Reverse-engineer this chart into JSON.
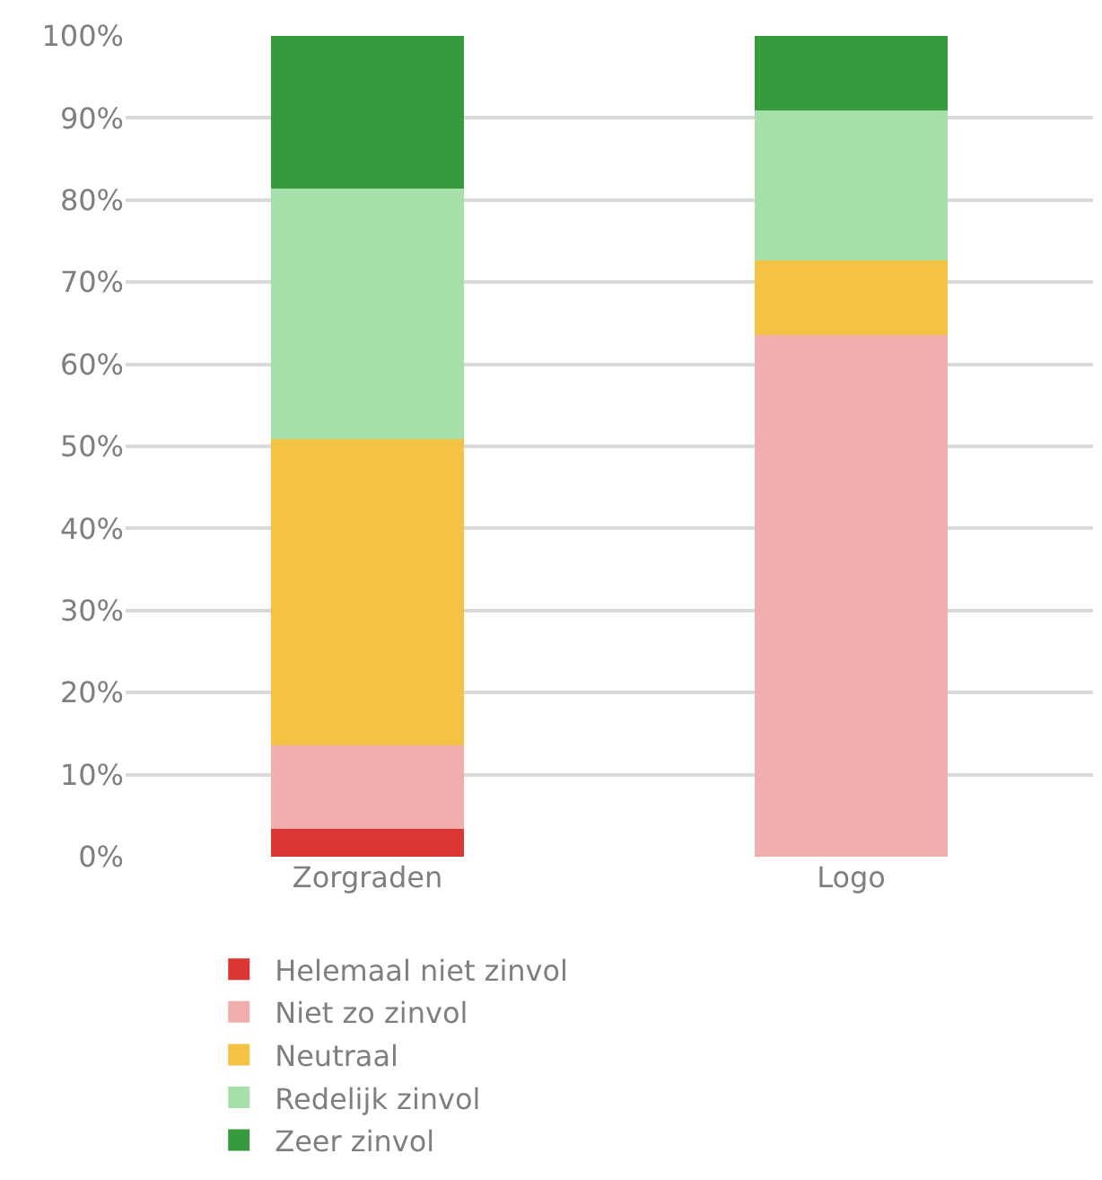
{
  "chart_data": {
    "type": "bar",
    "stacked": true,
    "categories": [
      "Zorgraden",
      "Logo"
    ],
    "series": [
      {
        "name": "Helemaal niet zinvol",
        "color": "#dc3632",
        "values": [
          3.4,
          0
        ]
      },
      {
        "name": "Niet zo zinvol",
        "color": "#f0aeac",
        "values": [
          10.2,
          63.6
        ]
      },
      {
        "name": "Neutraal",
        "color": "#f4c244",
        "values": [
          37.3,
          9.1
        ]
      },
      {
        "name": "Redelijk zinvol",
        "color": "#a6e0a8",
        "values": [
          30.5,
          18.2
        ]
      },
      {
        "name": "Zeer zinvol",
        "color": "#379a3c",
        "values": [
          18.6,
          9.1
        ]
      }
    ],
    "ylim": [
      0,
      100
    ],
    "yticks": [
      {
        "value": 0,
        "label": "0%"
      },
      {
        "value": 10,
        "label": "10%"
      },
      {
        "value": 20,
        "label": "20%"
      },
      {
        "value": 30,
        "label": "30%"
      },
      {
        "value": 40,
        "label": "40%"
      },
      {
        "value": 50,
        "label": "50%"
      },
      {
        "value": 60,
        "label": "60%"
      },
      {
        "value": 70,
        "label": "70%"
      },
      {
        "value": 80,
        "label": "80%"
      },
      {
        "value": 90,
        "label": "90%"
      },
      {
        "value": 100,
        "label": "100%"
      }
    ],
    "grid": "y",
    "legend": "bottom"
  }
}
